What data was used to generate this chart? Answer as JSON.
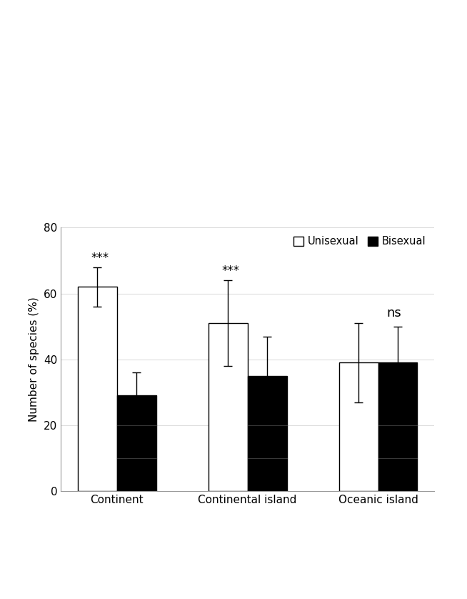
{
  "categories": [
    "Continent",
    "Continental island",
    "Oceanic island"
  ],
  "unisexual_means": [
    62,
    51,
    39
  ],
  "bisexual_means": [
    29,
    35,
    39
  ],
  "unisexual_errors": [
    6,
    13,
    12
  ],
  "bisexual_errors": [
    7,
    12,
    11
  ],
  "significance": [
    "***",
    "***",
    "ns"
  ],
  "ylabel": "Number of species (%)",
  "ylim": [
    0,
    80
  ],
  "yticks": [
    0,
    20,
    40,
    60,
    80
  ],
  "bar_width": 0.3,
  "unisexual_color": "#ffffff",
  "bisexual_color": "#000000",
  "edge_color": "#000000",
  "background_color": "#ffffff",
  "legend_labels": [
    "Unisexual",
    "Bisexual"
  ],
  "grid_color": "#dddddd",
  "error_cap_size": 4,
  "significance_fontsize": 12,
  "label_fontsize": 11,
  "tick_fontsize": 11,
  "legend_fontsize": 10.5
}
